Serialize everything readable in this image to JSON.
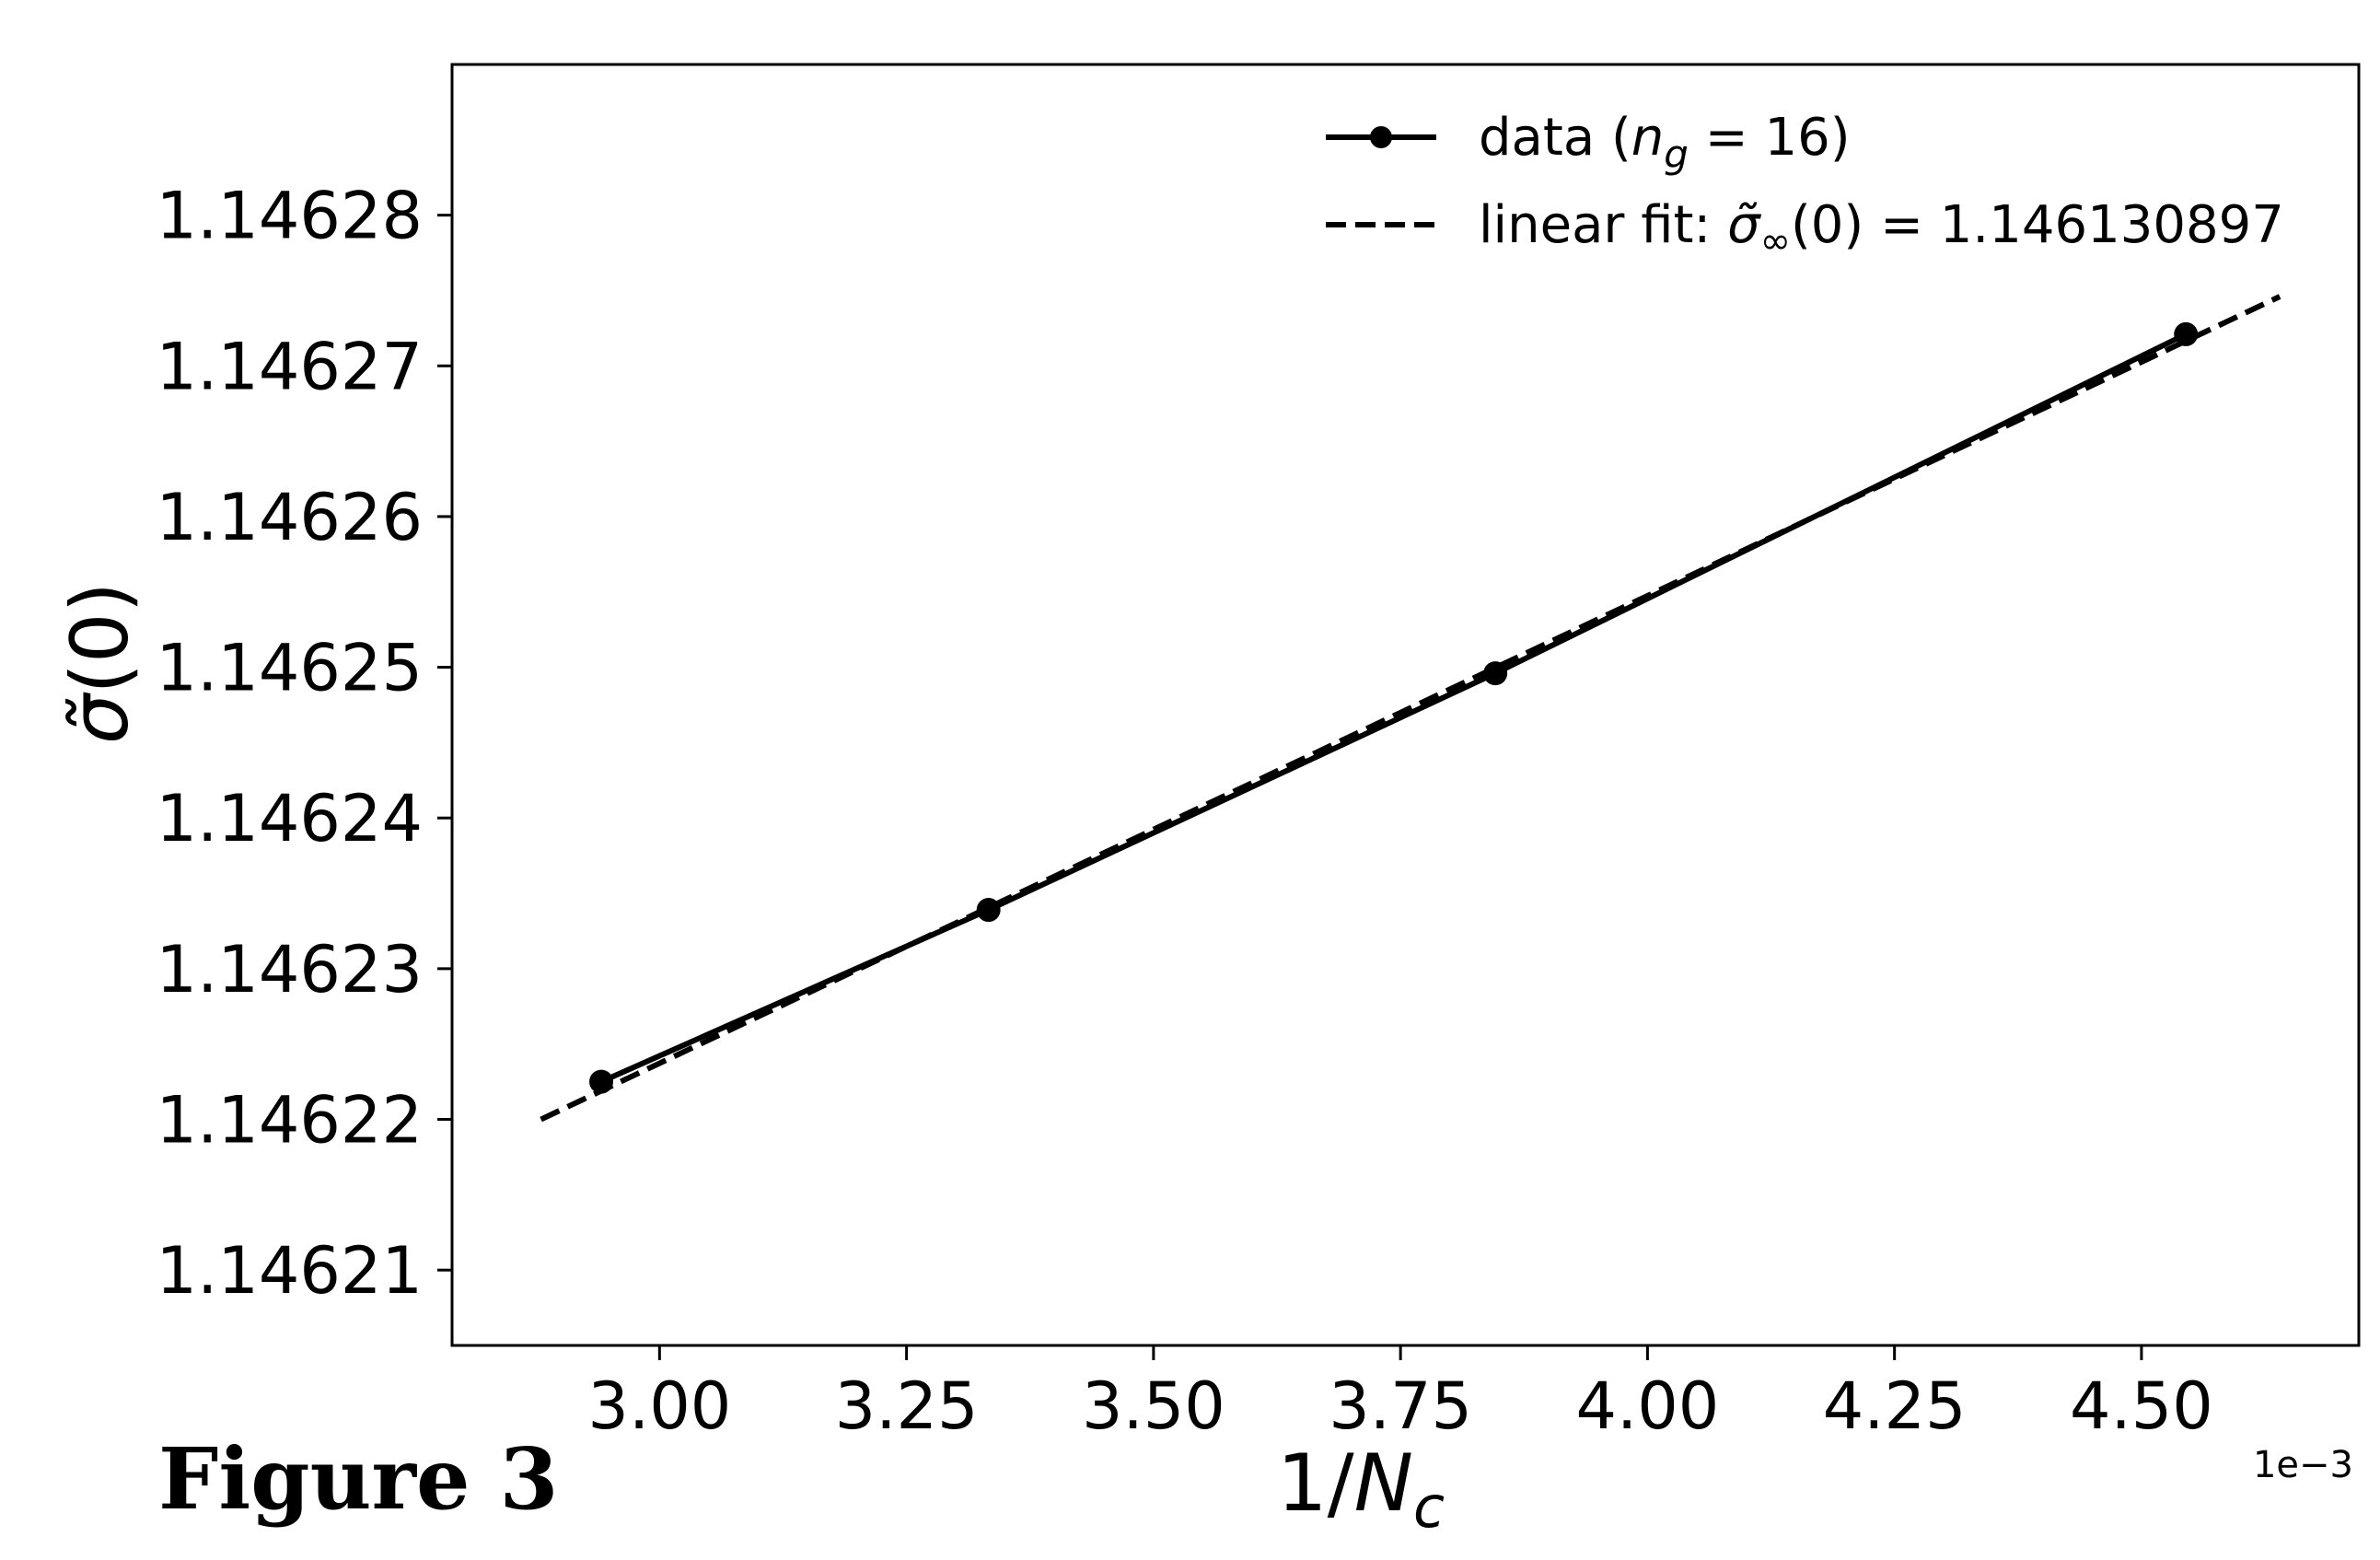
{
  "figure_caption": "Figure 3",
  "chart_data": {
    "type": "line",
    "xlabel": "1/N_c",
    "ylabel": "σ̃(0)",
    "x_offset_text": "1e−3",
    "x_scale_factor": 0.001,
    "xlim": [
      0.00279,
      0.00472
    ],
    "ylim": [
      1.146205,
      1.14629
    ],
    "xticks": [
      0.003,
      0.00325,
      0.0035,
      0.00375,
      0.004,
      0.00425,
      0.0045
    ],
    "xtick_labels": [
      "3.00",
      "3.25",
      "3.50",
      "3.75",
      "4.00",
      "4.25",
      "4.50"
    ],
    "yticks": [
      1.14621,
      1.14622,
      1.14623,
      1.14624,
      1.14625,
      1.14626,
      1.14627,
      1.14628
    ],
    "ytick_labels": [
      "1.14621",
      "1.14622",
      "1.14623",
      "1.14624",
      "1.14625",
      "1.14626",
      "1.14627",
      "1.14628"
    ],
    "grid": false,
    "legend_position": "top-right",
    "series": [
      {
        "name": "data (n_g = 16)",
        "style": "solid-with-markers",
        "color": "#000000",
        "x": [
          0.002941,
          0.003333,
          0.003846,
          0.004545
        ],
        "y": [
          1.1462225,
          1.1462339,
          1.1462496,
          1.1462721
        ]
      },
      {
        "name": "linear fit: σ̃_∞(0) = 1.146130897",
        "style": "dashed",
        "color": "#000000",
        "x": [
          0.00288,
          0.00464
        ],
        "y": [
          1.14622,
          1.1462746
        ]
      }
    ]
  }
}
